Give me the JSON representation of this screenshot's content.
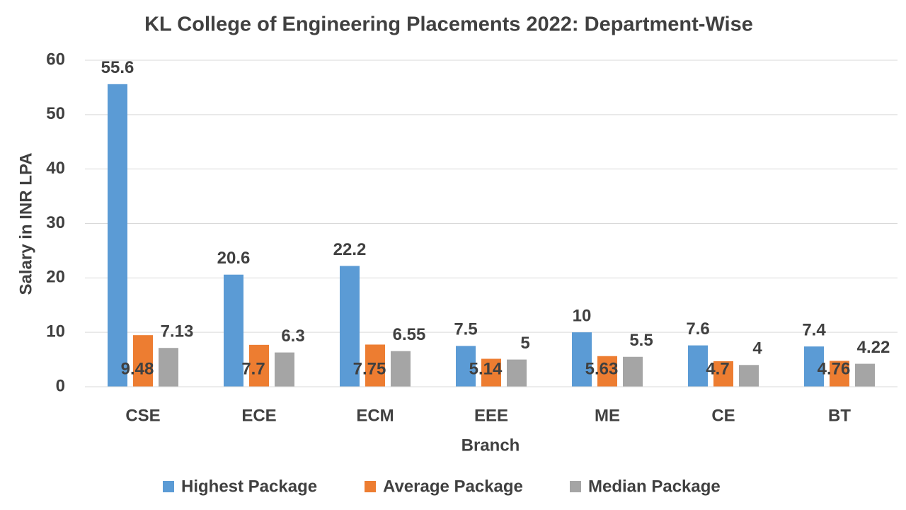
{
  "chart_data": {
    "type": "bar",
    "title": "KL College of Engineering Placements 2022: Department-Wise",
    "x_label": "Branch",
    "y_label": "Salary in INR LPA",
    "categories": [
      "CSE",
      "ECE",
      "ECM",
      "EEE",
      "ME",
      "CE",
      "BT"
    ],
    "series": [
      {
        "name": "Highest Package",
        "color": "#5b9bd5",
        "values": [
          55.6,
          20.6,
          22.2,
          7.5,
          10,
          7.6,
          7.4
        ]
      },
      {
        "name": "Average Package",
        "color": "#ed7d31",
        "values": [
          9.48,
          7.7,
          7.75,
          5.14,
          5.63,
          4.7,
          4.76
        ]
      },
      {
        "name": "Median Package",
        "color": "#a5a5a5",
        "values": [
          7.13,
          6.3,
          6.55,
          5,
          5.5,
          4,
          4.22
        ]
      }
    ],
    "ylim": [
      0,
      60
    ],
    "yticks": [
      0,
      10,
      20,
      30,
      40,
      50,
      60
    ],
    "grid": true,
    "legend": "bottom"
  }
}
